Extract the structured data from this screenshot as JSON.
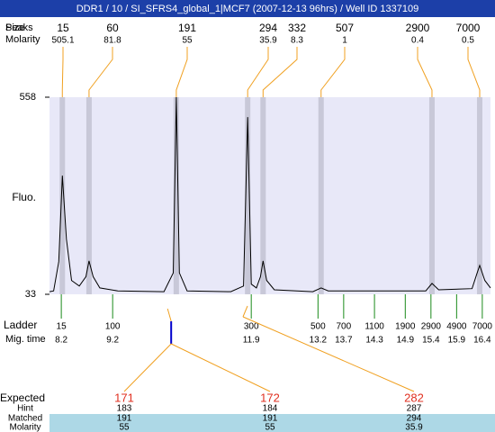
{
  "header": {
    "title": "DDR1 / 10 / SI_SFRS4_global_1|MCF7 (2007-12-13 96hrs) / Well ID 1337109"
  },
  "chart_data": {
    "type": "electropherogram",
    "y_label": "Fluo.",
    "ylim": [
      33,
      558
    ],
    "yticks": [
      33,
      558
    ],
    "xlim": [
      7.97,
      16.56
    ],
    "peaks": {
      "peaks_label": "Peaks",
      "size_label": "Size",
      "molarity_label": "Molarity",
      "sizes": [
        15,
        60,
        191,
        294,
        332,
        507,
        2900,
        7000
      ],
      "molarities": [
        505.1,
        81.8,
        55,
        35.9,
        8.3,
        1,
        0.4,
        0.5
      ],
      "times": [
        8.22,
        8.74,
        10.44,
        11.83,
        12.13,
        13.26,
        15.42,
        16.35
      ]
    },
    "trace": {
      "x": [
        7.97,
        8.05,
        8.15,
        8.22,
        8.3,
        8.4,
        8.55,
        8.68,
        8.74,
        8.82,
        8.95,
        9.3,
        10.2,
        10.38,
        10.44,
        10.5,
        10.65,
        11.5,
        11.75,
        11.83,
        11.9,
        12.0,
        12.08,
        12.13,
        12.2,
        12.35,
        13.1,
        13.26,
        13.4,
        15.3,
        15.42,
        15.55,
        16.2,
        16.3,
        16.35,
        16.45,
        16.56
      ],
      "values": [
        40,
        42,
        120,
        349,
        180,
        70,
        55,
        80,
        122,
        80,
        50,
        42,
        40,
        90,
        558,
        90,
        42,
        40,
        55,
        505,
        60,
        50,
        80,
        122,
        70,
        45,
        40,
        50,
        42,
        42,
        62,
        45,
        48,
        90,
        110,
        70,
        50
      ]
    },
    "ladder": {
      "label": "Ladder",
      "time_label": "Mig. time",
      "sizes": [
        15,
        100,
        300,
        500,
        700,
        1100,
        1900,
        2900,
        4900,
        7000
      ],
      "times": [
        8.2,
        9.2,
        11.9,
        13.2,
        13.7,
        14.3,
        14.9,
        15.4,
        15.9,
        16.4
      ]
    },
    "marker_time": 10.34
  },
  "expected": {
    "row_labels": [
      "Expected",
      "Hint",
      "Matched",
      "Molarity"
    ],
    "columns": [
      {
        "expected": 171,
        "hint": 183,
        "matched": 191,
        "molarity": 55
      },
      {
        "expected": 172,
        "hint": 184,
        "matched": 191,
        "molarity": 55
      },
      {
        "expected": 282,
        "hint": 287,
        "matched": 294,
        "molarity": 35.9
      }
    ]
  }
}
